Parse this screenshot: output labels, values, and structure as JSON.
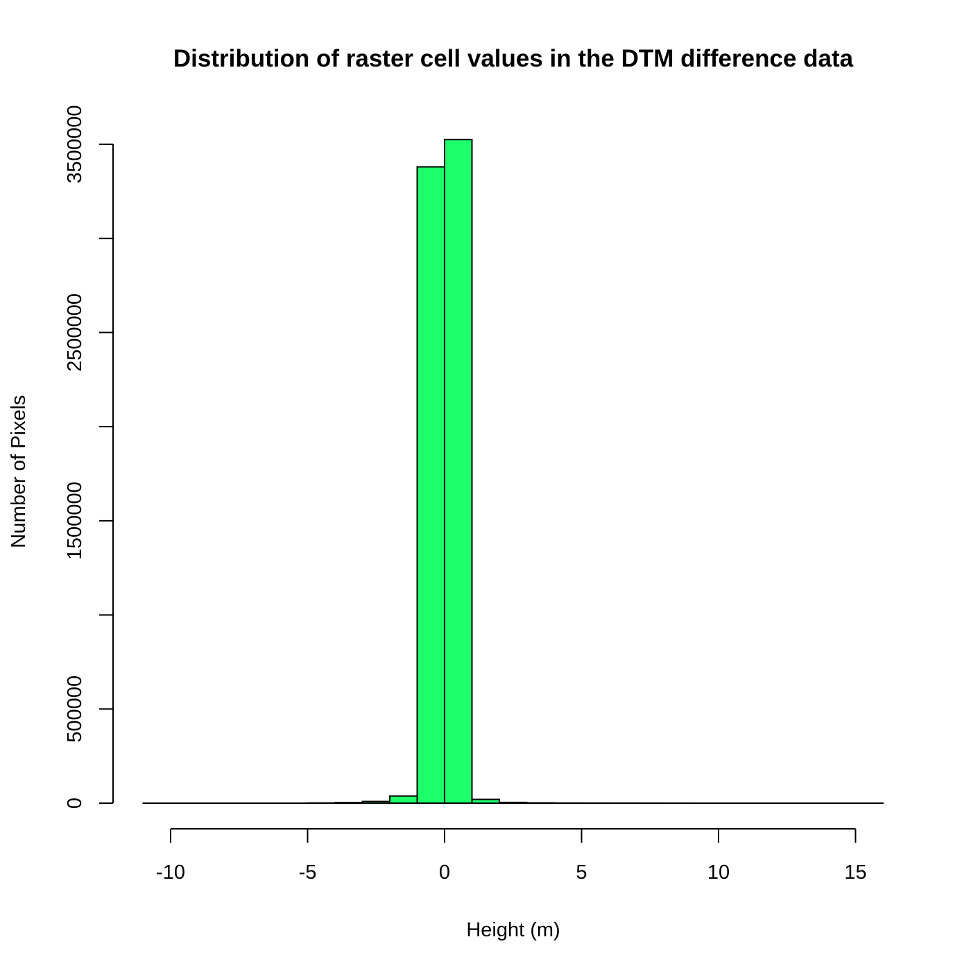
{
  "chart_data": {
    "type": "bar",
    "title": "Distribution of raster cell values in the DTM difference data",
    "xlabel": "Height (m)",
    "ylabel": "Number of Pixels",
    "color": "#1FFF6B",
    "xlim": [
      -11,
      16
    ],
    "ylim": [
      0,
      3500000
    ],
    "x_ticks": [
      -10,
      -5,
      0,
      5,
      10,
      15
    ],
    "x_tick_labels": [
      "-10",
      "-5",
      "0",
      "5",
      "10",
      "15"
    ],
    "y_ticks": [
      0,
      500000,
      1000000,
      1500000,
      2000000,
      2500000,
      3000000,
      3500000
    ],
    "y_tick_labels": [
      "0",
      "500000",
      "",
      "1500000",
      "",
      "2500000",
      "",
      "3500000"
    ],
    "bins": [
      {
        "x0": -11,
        "x1": -10,
        "value": 0
      },
      {
        "x0": -10,
        "x1": -9,
        "value": 0
      },
      {
        "x0": -9,
        "x1": -8,
        "value": 0
      },
      {
        "x0": -8,
        "x1": -7,
        "value": 0
      },
      {
        "x0": -7,
        "x1": -6,
        "value": 0
      },
      {
        "x0": -6,
        "x1": -5,
        "value": 0
      },
      {
        "x0": -5,
        "x1": -4,
        "value": 1000
      },
      {
        "x0": -4,
        "x1": -3,
        "value": 3000
      },
      {
        "x0": -3,
        "x1": -2,
        "value": 9000
      },
      {
        "x0": -2,
        "x1": -1,
        "value": 38000
      },
      {
        "x0": -1,
        "x1": 0,
        "value": 3380000
      },
      {
        "x0": 0,
        "x1": 1,
        "value": 3525000
      },
      {
        "x0": 1,
        "x1": 2,
        "value": 20000
      },
      {
        "x0": 2,
        "x1": 3,
        "value": 4000
      },
      {
        "x0": 3,
        "x1": 4,
        "value": 1500
      },
      {
        "x0": 4,
        "x1": 5,
        "value": 800
      },
      {
        "x0": 5,
        "x1": 6,
        "value": 500
      },
      {
        "x0": 6,
        "x1": 7,
        "value": 300
      },
      {
        "x0": 7,
        "x1": 8,
        "value": 200
      },
      {
        "x0": 8,
        "x1": 9,
        "value": 100
      },
      {
        "x0": 9,
        "x1": 10,
        "value": 0
      },
      {
        "x0": 10,
        "x1": 11,
        "value": 0
      },
      {
        "x0": 11,
        "x1": 12,
        "value": 0
      },
      {
        "x0": 12,
        "x1": 13,
        "value": 0
      },
      {
        "x0": 13,
        "x1": 14,
        "value": 0
      },
      {
        "x0": 14,
        "x1": 15,
        "value": 0
      },
      {
        "x0": 15,
        "x1": 16,
        "value": 0
      }
    ]
  }
}
